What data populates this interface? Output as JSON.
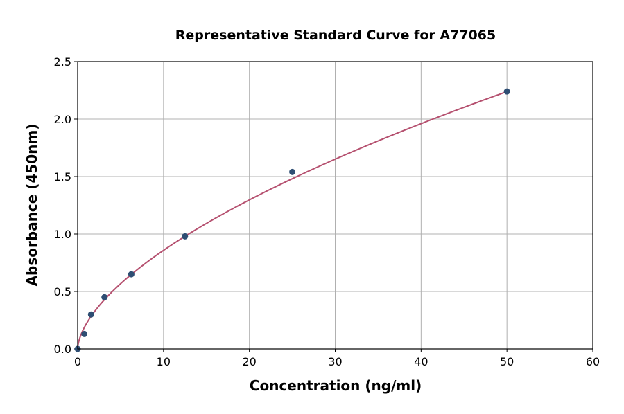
{
  "chart_data": {
    "type": "scatter",
    "title": "Representative Standard Curve for A77065",
    "xlabel": "Concentration (ng/ml)",
    "ylabel": "Absorbance (450nm)",
    "xlim": [
      0,
      60
    ],
    "ylim": [
      0,
      2.5
    ],
    "xticks": [
      "0",
      "10",
      "20",
      "30",
      "40",
      "50",
      "60"
    ],
    "yticks": [
      "0.0",
      "0.5",
      "1.0",
      "1.5",
      "2.0",
      "2.5"
    ],
    "grid": true,
    "points": [
      {
        "x": 0,
        "y": 0
      },
      {
        "x": 0.78,
        "y": 0.13
      },
      {
        "x": 1.56,
        "y": 0.3
      },
      {
        "x": 3.125,
        "y": 0.45
      },
      {
        "x": 6.25,
        "y": 0.65
      },
      {
        "x": 12.5,
        "y": 0.98
      },
      {
        "x": 25,
        "y": 1.54
      },
      {
        "x": 50,
        "y": 2.24
      }
    ],
    "fit_curve": {
      "model": "power",
      "a": 0.2175,
      "b": 0.596,
      "x_range": [
        0,
        50
      ]
    },
    "colors": {
      "points": "#2e4e73",
      "curve": "#b5506f",
      "grid": "#b0b0b0"
    }
  }
}
